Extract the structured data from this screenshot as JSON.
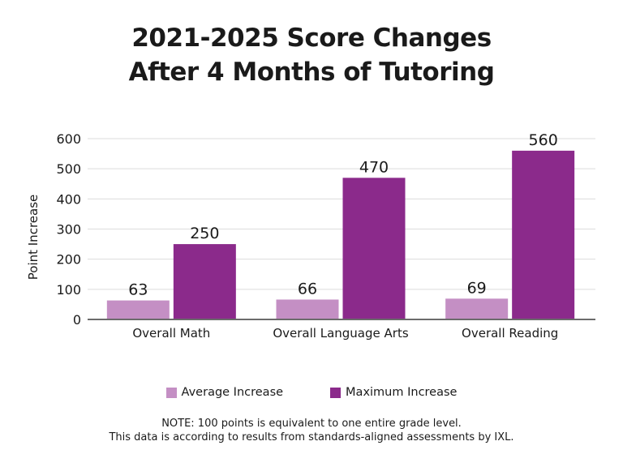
{
  "chart_data": {
    "type": "bar",
    "title_lines": [
      "2021-2025 Score Changes",
      "After 4 Months of Tutoring"
    ],
    "xlabel": "",
    "ylabel": "Point Increase",
    "ylim": [
      0,
      600
    ],
    "yticks": [
      0,
      100,
      200,
      300,
      400,
      500,
      600
    ],
    "grid": true,
    "legend_placement": "bottom",
    "categories": [
      "Overall Math",
      "Overall Language Arts",
      "Overall Reading"
    ],
    "series": [
      {
        "name": "Average Increase",
        "values": [
          63,
          66,
          69
        ],
        "color": "#c48fc4"
      },
      {
        "name": "Maximum Increase",
        "values": [
          250,
          470,
          560
        ],
        "color": "#8b2a8b"
      }
    ],
    "notes": [
      "NOTE:  100 points is equivalent to one entire grade level.",
      "This data is according to results from standards-aligned assessments by IXL."
    ]
  }
}
